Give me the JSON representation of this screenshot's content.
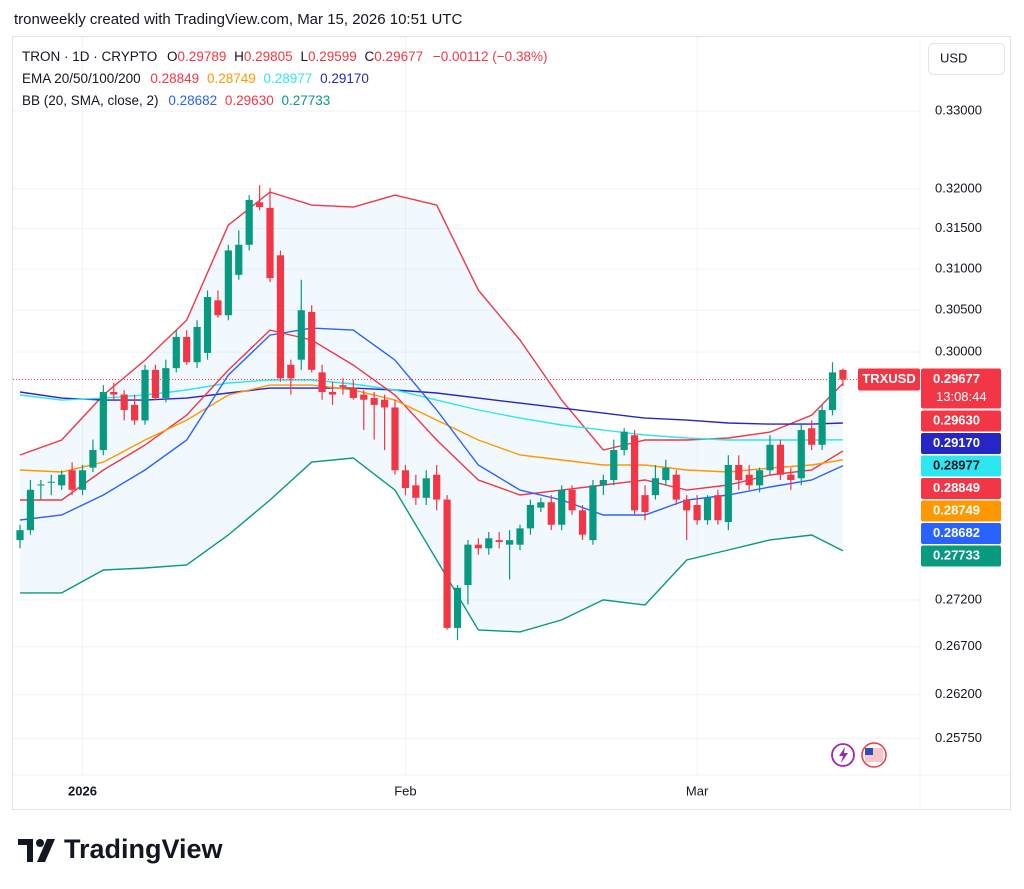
{
  "header": {
    "attribution": "tronweekly created with TradingView.com, Mar 15, 2026 10:51 UTC",
    "currency_button": "USD",
    "logo": "TradingView"
  },
  "chart_data": {
    "type": "candlestick",
    "symbol": "TRON · 1D · CRYPTO",
    "ohlc_letters": [
      "O",
      "H",
      "L",
      "C"
    ],
    "change": "−0.00112 (−0.38%)",
    "ticker": "TRXUSD",
    "countdown": "13:08:44",
    "ema_label": "EMA 20/50/100/200",
    "bb_label": "BB (20, SMA, close, 2)",
    "up_color": "#089981",
    "down_color": "#f23645",
    "log_scale": true,
    "grid": true,
    "ylim": [
      0.2538,
      0.3394
    ],
    "yticks": [
      {
        "value": 0.33,
        "label": "0.33000"
      },
      {
        "value": 0.32,
        "label": "0.32000"
      },
      {
        "value": 0.315,
        "label": "0.31500"
      },
      {
        "value": 0.31,
        "label": "0.31000"
      },
      {
        "value": 0.305,
        "label": "0.30500"
      },
      {
        "value": 0.3,
        "label": "0.30000"
      },
      {
        "value": 0.272,
        "label": "0.27200"
      },
      {
        "value": 0.267,
        "label": "0.26700"
      },
      {
        "value": 0.262,
        "label": "0.26200"
      },
      {
        "value": 0.2575,
        "label": "0.25750"
      }
    ],
    "xlim": [
      -0.77,
      86.4
    ],
    "xticks": [
      {
        "value": 6,
        "label": "2026"
      },
      {
        "value": 37,
        "label": "Feb"
      },
      {
        "value": 65,
        "label": "Mar"
      }
    ],
    "open": [
      0.2785,
      0.2796,
      0.2846,
      0.2849,
      0.2846,
      0.2863,
      0.2841,
      0.2866,
      0.2886,
      0.2953,
      0.295,
      0.2938,
      0.292,
      0.2979,
      0.2946,
      0.2981,
      0.3018,
      0.2988,
      0.2999,
      0.3062,
      0.3044,
      0.3093,
      0.313,
      0.3183,
      0.3176,
      0.3117,
      0.2985,
      0.2991,
      0.3048,
      0.2976,
      0.2953,
      0.2961,
      0.2958,
      0.295,
      0.2946,
      0.2944,
      0.2935,
      0.2863,
      0.2846,
      0.2832,
      0.2858,
      0.283,
      0.269,
      0.2736,
      0.278,
      0.2776,
      0.2785,
      0.278,
      0.278,
      0.2798,
      0.2821,
      0.2827,
      0.2802,
      0.2841,
      0.2818,
      0.2785,
      0.2846,
      0.2852,
      0.2886,
      0.2903,
      0.2835,
      0.2835,
      0.2852,
      0.2858,
      0.283,
      0.2824,
      0.2807,
      0.2835,
      0.2805,
      0.2869,
      0.2858,
      0.2846,
      0.2863,
      0.2892,
      0.2858,
      0.2854,
      0.2911,
      0.2892,
      0.2932,
      0.29789
    ],
    "high": [
      0.2802,
      0.2852,
      0.2852,
      0.2858,
      0.2863,
      0.2872,
      0.2869,
      0.2898,
      0.2961,
      0.2964,
      0.2955,
      0.295,
      0.2985,
      0.2985,
      0.2991,
      0.3026,
      0.3026,
      0.3038,
      0.3074,
      0.3074,
      0.313,
      0.3148,
      0.3192,
      0.3205,
      0.3201,
      0.3123,
      0.2991,
      0.3087,
      0.3056,
      0.2985,
      0.2965,
      0.2969,
      0.2967,
      0.2955,
      0.2953,
      0.295,
      0.2944,
      0.2869,
      0.2858,
      0.2863,
      0.2869,
      0.2835,
      0.2736,
      0.2785,
      0.2787,
      0.2794,
      0.2794,
      0.2796,
      0.2802,
      0.283,
      0.2832,
      0.2835,
      0.2846,
      0.2846,
      0.2824,
      0.2852,
      0.2858,
      0.2898,
      0.2911,
      0.2909,
      0.2846,
      0.2869,
      0.2875,
      0.2863,
      0.2835,
      0.2835,
      0.2835,
      0.2841,
      0.288,
      0.288,
      0.2869,
      0.2866,
      0.2903,
      0.2898,
      0.2866,
      0.2915,
      0.292,
      0.2938,
      0.2988,
      0.29805
    ],
    "low": [
      0.2776,
      0.2791,
      0.283,
      0.2835,
      0.2841,
      0.2835,
      0.2835,
      0.2861,
      0.288,
      0.2944,
      0.292,
      0.2915,
      0.2915,
      0.2944,
      0.2941,
      0.2976,
      0.2985,
      0.2981,
      0.2991,
      0.3041,
      0.3038,
      0.3087,
      0.3123,
      0.3173,
      0.3084,
      0.2965,
      0.295,
      0.2979,
      0.2976,
      0.2944,
      0.2938,
      0.295,
      0.2944,
      0.2909,
      0.2898,
      0.2886,
      0.2858,
      0.2835,
      0.2824,
      0.2824,
      0.2818,
      0.2688,
      0.2677,
      0.2715,
      0.2769,
      0.2769,
      0.2776,
      0.2742,
      0.2774,
      0.2791,
      0.2816,
      0.2796,
      0.2796,
      0.2813,
      0.2785,
      0.278,
      0.2835,
      0.2846,
      0.288,
      0.2813,
      0.2807,
      0.283,
      0.2846,
      0.2824,
      0.2785,
      0.2802,
      0.2802,
      0.2802,
      0.2796,
      0.2841,
      0.2841,
      0.2838,
      0.2858,
      0.2852,
      0.2841,
      0.2846,
      0.2886,
      0.2886,
      0.2926,
      0.29599
    ],
    "close": [
      0.2796,
      0.2841,
      0.2847,
      0.285,
      0.2858,
      0.2841,
      0.2863,
      0.2886,
      0.2953,
      0.295,
      0.2932,
      0.292,
      0.2979,
      0.2946,
      0.2981,
      0.3018,
      0.2988,
      0.303,
      0.3066,
      0.3044,
      0.3123,
      0.313,
      0.3186,
      0.3177,
      0.3089,
      0.2969,
      0.2969,
      0.305,
      0.2979,
      0.2953,
      0.295,
      0.2959,
      0.2946,
      0.2944,
      0.2938,
      0.2935,
      0.2863,
      0.2843,
      0.2832,
      0.2854,
      0.283,
      0.269,
      0.2733,
      0.278,
      0.2776,
      0.2787,
      0.2783,
      0.2785,
      0.2798,
      0.2824,
      0.2827,
      0.2802,
      0.2841,
      0.2818,
      0.2791,
      0.2846,
      0.2852,
      0.2886,
      0.2907,
      0.2818,
      0.2816,
      0.2854,
      0.2866,
      0.283,
      0.2818,
      0.2807,
      0.2832,
      0.2807,
      0.2869,
      0.2852,
      0.2846,
      0.2863,
      0.2892,
      0.2858,
      0.2852,
      0.2909,
      0.2892,
      0.2932,
      0.2976,
      0.29677
    ],
    "indicator_x": [
      0,
      4,
      8,
      12,
      16,
      20,
      24,
      28,
      32,
      36,
      40,
      44,
      48,
      52,
      56,
      60,
      64,
      68,
      72,
      76,
      79
    ],
    "series": [
      {
        "color": "#f23645",
        "last_label": "0.29630",
        "values": [
          0.28803,
          0.28975,
          0.29495,
          0.29905,
          0.30382,
          0.31545,
          0.31959,
          0.31795,
          0.3177,
          0.31921,
          0.31795,
          0.30744,
          0.30143,
          0.29436,
          0.2886,
          0.28975,
          0.28975,
          0.28998,
          0.29066,
          0.29262,
          0.2963
        ]
      },
      {
        "color": "#2626c4",
        "last_label": "0.29170",
        "values": [
          0.2953,
          0.29459,
          0.29436,
          0.29436,
          0.29459,
          0.29518,
          0.29576,
          0.29576,
          0.29576,
          0.29553,
          0.29518,
          0.29459,
          0.29401,
          0.29343,
          0.29285,
          0.29227,
          0.29204,
          0.2917,
          0.29158,
          0.29158,
          0.2917
        ]
      },
      {
        "color": "#2ee6f0",
        "last_label": "0.28977",
        "values": [
          0.29495,
          0.29436,
          0.29459,
          0.29495,
          0.29553,
          0.29635,
          0.2967,
          0.2967,
          0.29623,
          0.29553,
          0.29436,
          0.2932,
          0.29227,
          0.29147,
          0.29089,
          0.29032,
          0.28998,
          0.28975,
          0.28975,
          0.28975,
          0.28977
        ]
      },
      {
        "color": "#f23645",
        "last_label": "0.28849",
        "values": [
          0.28295,
          0.28295,
          0.28633,
          0.28917,
          0.29262,
          0.29787,
          0.30262,
          0.30143,
          0.29846,
          0.29495,
          0.28975,
          0.2852,
          0.28351,
          0.28407,
          0.28464,
          0.2852,
          0.28407,
          0.28464,
          0.28577,
          0.28633,
          0.28849
        ]
      },
      {
        "color": "#ff9800",
        "last_label": "0.28749",
        "values": [
          0.28633,
          0.2861,
          0.28723,
          0.28975,
          0.29204,
          0.29495,
          0.29611,
          0.29611,
          0.29553,
          0.29436,
          0.29204,
          0.28975,
          0.28803,
          0.28746,
          0.2869,
          0.2869,
          0.28633,
          0.2861,
          0.28656,
          0.2869,
          0.28749
        ]
      },
      {
        "color": "#2962ff",
        "last_label": "0.28682",
        "values": [
          0.28073,
          0.28128,
          0.28351,
          0.28633,
          0.28975,
          0.29728,
          0.30202,
          0.30286,
          0.30262,
          0.29905,
          0.2932,
          0.2869,
          0.28407,
          0.28295,
          0.28128,
          0.28128,
          0.28295,
          0.28351,
          0.28441,
          0.2852,
          0.28682
        ]
      },
      {
        "color": "#089981",
        "last_label": "0.27733",
        "values": [
          0.27275,
          0.27275,
          0.27523,
          0.27545,
          0.27577,
          0.27907,
          0.28295,
          0.28723,
          0.28769,
          0.28407,
          0.27632,
          0.26878,
          0.26857,
          0.26985,
          0.27199,
          0.27145,
          0.27632,
          0.27742,
          0.27852,
          0.27907,
          0.27733
        ]
      }
    ]
  }
}
